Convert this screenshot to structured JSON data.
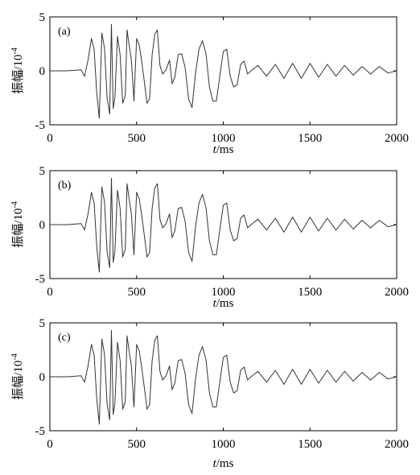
{
  "chart_data": [
    {
      "type": "line",
      "panel_label": "(a)",
      "xlabel_italic": "t",
      "xlabel_unit": "/ms",
      "ylabel_main": "振幅/10",
      "ylabel_exp": "-4",
      "xlim": [
        0,
        2000
      ],
      "ylim": [
        -5,
        5
      ],
      "xticks": [
        "0",
        "500",
        "1000",
        "1500",
        "2000"
      ],
      "yticks": [
        "5",
        "0",
        "-5"
      ],
      "grid": false,
      "series": [
        {
          "x": [
            0,
            100,
            180,
            200,
            220,
            240,
            255,
            270,
            285,
            300,
            315,
            330,
            345,
            355,
            365,
            375,
            390,
            405,
            420,
            435,
            445,
            455,
            470,
            485,
            500,
            515,
            530,
            545,
            560,
            575,
            590,
            605,
            620,
            635,
            650,
            670,
            690,
            705,
            720,
            740,
            760,
            780,
            800,
            820,
            840,
            860,
            880,
            900,
            920,
            940,
            960,
            980,
            1000,
            1020,
            1040,
            1060,
            1080,
            1100,
            1120,
            1140,
            1160,
            1200,
            1250,
            1300,
            1350,
            1400,
            1450,
            1500,
            1550,
            1600,
            1650,
            1700,
            1750,
            1800,
            1850,
            1900,
            1950,
            2000
          ],
          "y": [
            0,
            0,
            0.1,
            -0.5,
            1.0,
            3.0,
            2.0,
            -2.0,
            -4.4,
            3.5,
            2.1,
            -2.5,
            -4.0,
            4.3,
            -3.5,
            -2.5,
            3.2,
            1.5,
            -3.0,
            -2.3,
            3.8,
            2.6,
            1.0,
            -2.8,
            3.0,
            2.4,
            0.8,
            -1.0,
            -3.0,
            -2.6,
            1.5,
            3.4,
            3.8,
            0.5,
            -0.3,
            0.1,
            1.0,
            -1.2,
            -0.6,
            1.5,
            1.6,
            0.3,
            -2.6,
            -3.4,
            -0.2,
            2.0,
            2.8,
            1.6,
            -1.5,
            -2.8,
            -2.8,
            -0.5,
            1.8,
            2.0,
            -0.5,
            -1.5,
            -1.3,
            0.6,
            0.9,
            -0.3,
            0.0,
            0.5,
            -0.5,
            0.6,
            -0.7,
            0.7,
            -0.7,
            0.7,
            -0.6,
            0.6,
            -0.5,
            0.5,
            -0.4,
            0.4,
            -0.3,
            0.4,
            -0.2,
            0.0
          ]
        }
      ]
    },
    {
      "type": "line",
      "panel_label": "(b)",
      "xlabel_italic": "t",
      "xlabel_unit": "/ms",
      "ylabel_main": "振幅/10",
      "ylabel_exp": "-4",
      "xlim": [
        0,
        2000
      ],
      "ylim": [
        -5,
        5
      ],
      "xticks": [
        "0",
        "500",
        "1000",
        "1500",
        "2000"
      ],
      "yticks": [
        "5",
        "0",
        "-5"
      ],
      "grid": false,
      "series": [
        {
          "x": [
            0,
            100,
            180,
            200,
            220,
            240,
            255,
            270,
            285,
            300,
            315,
            330,
            345,
            355,
            365,
            375,
            390,
            405,
            420,
            435,
            445,
            455,
            470,
            485,
            500,
            515,
            530,
            545,
            560,
            575,
            590,
            605,
            620,
            635,
            650,
            670,
            690,
            705,
            720,
            740,
            760,
            780,
            800,
            820,
            840,
            860,
            880,
            900,
            920,
            940,
            960,
            980,
            1000,
            1020,
            1040,
            1060,
            1080,
            1100,
            1120,
            1140,
            1160,
            1200,
            1250,
            1300,
            1350,
            1400,
            1450,
            1500,
            1550,
            1600,
            1650,
            1700,
            1750,
            1800,
            1850,
            1900,
            1950,
            2000
          ],
          "y": [
            0,
            0,
            0.1,
            -0.5,
            1.0,
            3.0,
            2.0,
            -2.0,
            -4.4,
            3.5,
            2.1,
            -2.5,
            -4.0,
            4.3,
            -3.5,
            -2.5,
            3.2,
            1.5,
            -3.0,
            -2.3,
            3.8,
            2.6,
            1.0,
            -2.8,
            3.0,
            2.4,
            0.8,
            -1.0,
            -3.0,
            -2.6,
            1.5,
            3.4,
            3.8,
            0.5,
            -0.3,
            0.1,
            1.0,
            -1.2,
            -0.6,
            1.5,
            1.6,
            0.3,
            -2.6,
            -3.4,
            -0.2,
            2.0,
            2.8,
            1.6,
            -1.5,
            -2.8,
            -2.8,
            -0.5,
            1.8,
            2.0,
            -0.5,
            -1.5,
            -1.3,
            0.6,
            0.9,
            -0.3,
            0.0,
            0.5,
            -0.5,
            0.6,
            -0.7,
            0.7,
            -0.7,
            0.7,
            -0.6,
            0.6,
            -0.5,
            0.5,
            -0.4,
            0.4,
            -0.3,
            0.4,
            -0.2,
            0.0
          ]
        }
      ]
    },
    {
      "type": "line",
      "panel_label": "(c)",
      "xlabel_italic": "t",
      "xlabel_unit": "/ms",
      "ylabel_main": "振幅/10",
      "ylabel_exp": "-4",
      "xlim": [
        0,
        2000
      ],
      "ylim": [
        -5,
        5
      ],
      "xticks": [
        "0",
        "500",
        "1000",
        "1500",
        "2000"
      ],
      "yticks": [
        "5",
        "0",
        "-5"
      ],
      "grid": false,
      "series": [
        {
          "x": [
            0,
            100,
            180,
            200,
            220,
            240,
            255,
            270,
            285,
            300,
            315,
            330,
            345,
            355,
            365,
            375,
            390,
            405,
            420,
            435,
            445,
            455,
            470,
            485,
            500,
            515,
            530,
            545,
            560,
            575,
            590,
            605,
            620,
            635,
            650,
            670,
            690,
            705,
            720,
            740,
            760,
            780,
            800,
            820,
            840,
            860,
            880,
            900,
            920,
            940,
            960,
            980,
            1000,
            1020,
            1040,
            1060,
            1080,
            1100,
            1120,
            1140,
            1160,
            1200,
            1250,
            1300,
            1350,
            1400,
            1450,
            1500,
            1550,
            1600,
            1650,
            1700,
            1750,
            1800,
            1850,
            1900,
            1950,
            2000
          ],
          "y": [
            0,
            0,
            0.1,
            -0.5,
            1.0,
            3.0,
            2.0,
            -2.0,
            -4.4,
            3.5,
            2.1,
            -2.5,
            -4.0,
            4.3,
            -3.5,
            -2.5,
            3.2,
            1.5,
            -3.0,
            -2.3,
            3.8,
            2.6,
            1.0,
            -2.8,
            3.0,
            2.4,
            0.8,
            -1.0,
            -3.0,
            -2.6,
            1.5,
            3.4,
            3.8,
            0.5,
            -0.3,
            0.1,
            1.0,
            -1.2,
            -0.6,
            1.5,
            1.6,
            0.3,
            -2.6,
            -3.4,
            -0.2,
            2.0,
            2.8,
            1.6,
            -1.5,
            -2.8,
            -2.8,
            -0.5,
            1.8,
            2.0,
            -0.5,
            -1.5,
            -1.3,
            0.6,
            0.9,
            -0.3,
            0.0,
            0.5,
            -0.5,
            0.6,
            -0.7,
            0.7,
            -0.7,
            0.7,
            -0.6,
            0.6,
            -0.5,
            0.5,
            -0.4,
            0.4,
            -0.3,
            0.4,
            -0.2,
            0.0
          ]
        }
      ]
    }
  ],
  "colors": {
    "line": "#333333",
    "axis": "#000000"
  }
}
